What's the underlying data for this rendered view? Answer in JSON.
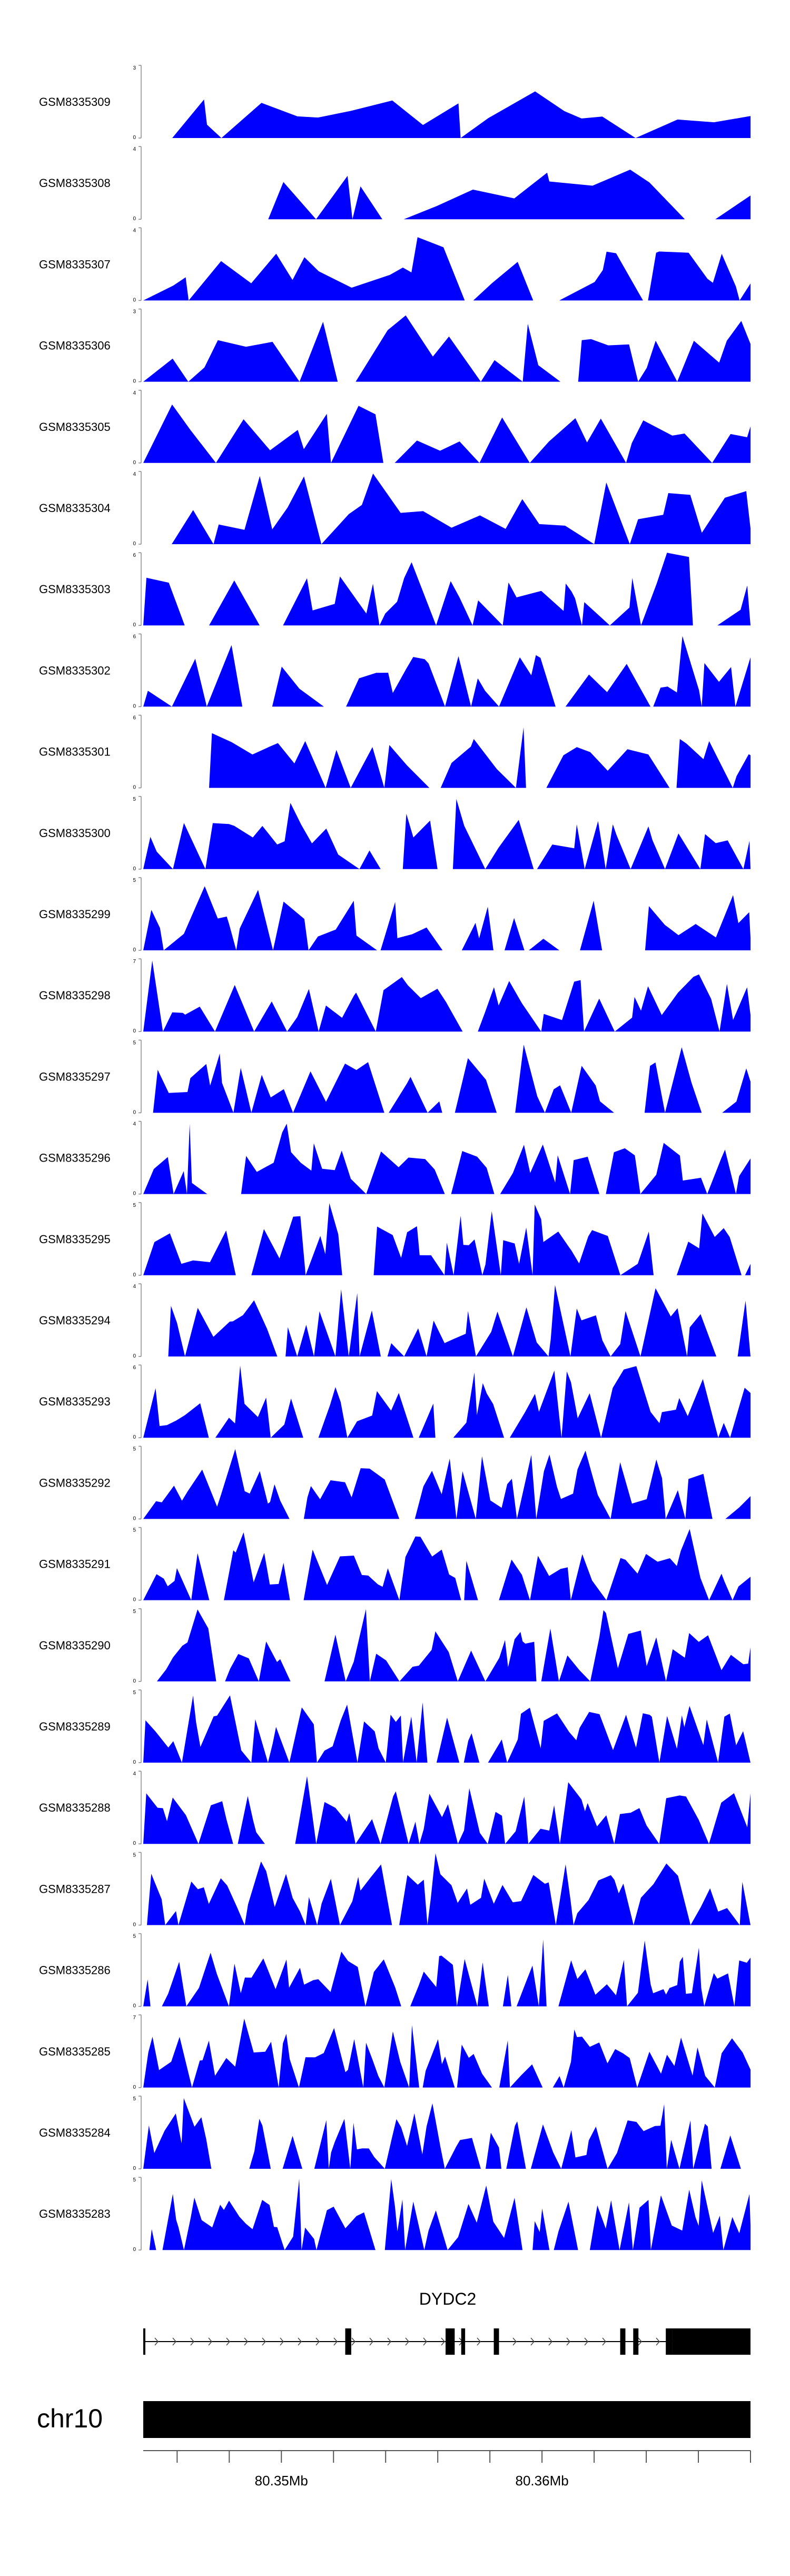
{
  "chart_data": {
    "type": "area",
    "title": "",
    "xlabel": "",
    "ylabel": "",
    "xlim": [
      80.3447,
      80.368
    ],
    "x_unit": "Mb",
    "fill_color": "#0000ff",
    "tracks": [
      {
        "name": "GSM8335309",
        "ymax": 3,
        "ymin": 0
      },
      {
        "name": "GSM8335308",
        "ymax": 4,
        "ymin": 0
      },
      {
        "name": "GSM8335307",
        "ymax": 4,
        "ymin": 0
      },
      {
        "name": "GSM8335306",
        "ymax": 3,
        "ymin": 0
      },
      {
        "name": "GSM8335305",
        "ymax": 4,
        "ymin": 0
      },
      {
        "name": "GSM8335304",
        "ymax": 4,
        "ymin": 0
      },
      {
        "name": "GSM8335303",
        "ymax": 6,
        "ymin": 0
      },
      {
        "name": "GSM8335302",
        "ymax": 6,
        "ymin": 0
      },
      {
        "name": "GSM8335301",
        "ymax": 6,
        "ymin": 0
      },
      {
        "name": "GSM8335300",
        "ymax": 5,
        "ymin": 0
      },
      {
        "name": "GSM8335299",
        "ymax": 5,
        "ymin": 0
      },
      {
        "name": "GSM8335298",
        "ymax": 7,
        "ymin": 0
      },
      {
        "name": "GSM8335297",
        "ymax": 5,
        "ymin": 0
      },
      {
        "name": "GSM8335296",
        "ymax": 4,
        "ymin": 0
      },
      {
        "name": "GSM8335295",
        "ymax": 5,
        "ymin": 0
      },
      {
        "name": "GSM8335294",
        "ymax": 4,
        "ymin": 0
      },
      {
        "name": "GSM8335293",
        "ymax": 6,
        "ymin": 0
      },
      {
        "name": "GSM8335292",
        "ymax": 5,
        "ymin": 0
      },
      {
        "name": "GSM8335291",
        "ymax": 5,
        "ymin": 0
      },
      {
        "name": "GSM8335290",
        "ymax": 5,
        "ymin": 0
      },
      {
        "name": "GSM8335289",
        "ymax": 5,
        "ymin": 0
      },
      {
        "name": "GSM8335288",
        "ymax": 4,
        "ymin": 0
      },
      {
        "name": "GSM8335287",
        "ymax": 5,
        "ymin": 0
      },
      {
        "name": "GSM8335286",
        "ymax": 5,
        "ymin": 0
      },
      {
        "name": "GSM8335285",
        "ymax": 7,
        "ymin": 0
      },
      {
        "name": "GSM8335284",
        "ymax": 5,
        "ymin": 0
      },
      {
        "name": "GSM8335283",
        "ymax": 5,
        "ymin": 0
      }
    ],
    "gene": {
      "name": "DYDC2",
      "strand": "+",
      "start_mb": 80.3447,
      "end_mb": 80.368,
      "exons_mb": [
        [
          80.3447,
          80.34478
        ],
        [
          80.35245,
          80.35268
        ],
        [
          80.3563,
          80.35665
        ],
        [
          80.3569,
          80.35705
        ],
        [
          80.35815,
          80.35835
        ],
        [
          80.363,
          80.3632
        ],
        [
          80.3635,
          80.3637
        ],
        [
          80.36475,
          80.365
        ],
        [
          80.365,
          80.368
        ]
      ]
    },
    "ideogram": {
      "chromosome": "chr10"
    },
    "axis": {
      "tick_labels": [
        "80.35Mb",
        "80.36Mb"
      ],
      "labeled_ticks_mb": [
        80.35,
        80.36
      ],
      "minor_tick_step_mb": 0.002
    }
  }
}
